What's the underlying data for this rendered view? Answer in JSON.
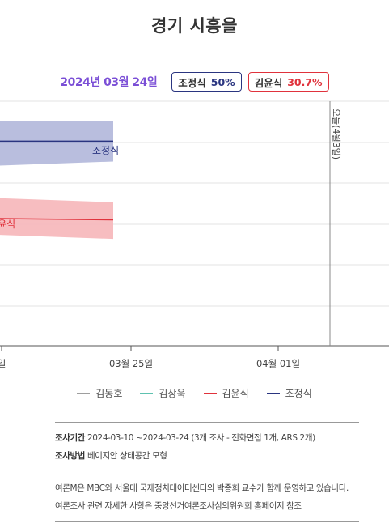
{
  "title": "경기 시흥을",
  "summary": {
    "date": "2024년 03월 24일",
    "candidates": [
      {
        "name": "조정식",
        "pct": "50%",
        "color": "#2a3580"
      },
      {
        "name": "김윤식",
        "pct": "30.7%",
        "color": "#e0323c"
      }
    ]
  },
  "chart_data": {
    "type": "line",
    "x_ticks": [
      "03월 25일",
      "04월 01일"
    ],
    "left_partial_tick": "일",
    "election_marker": "오늘(4월3일)",
    "series": [
      {
        "name": "조정식",
        "color": "#2a3580",
        "band_color": "#b5bbdc",
        "points": [
          {
            "x": "2024-03-10",
            "y": 50,
            "low": 44,
            "high": 55
          },
          {
            "x": "2024-03-24",
            "y": 50,
            "low": 45,
            "high": 55
          }
        ]
      },
      {
        "name": "김윤식",
        "color": "#e0323c",
        "band_color": "#f7b9bd",
        "points": [
          {
            "x": "2024-03-10",
            "y": 31,
            "low": 27,
            "high": 36
          },
          {
            "x": "2024-03-24",
            "y": 30.7,
            "low": 26,
            "high": 35
          }
        ]
      }
    ],
    "gridlines": true
  },
  "legend": [
    {
      "name": "김동호",
      "color": "#9e9e9e"
    },
    {
      "name": "김상욱",
      "color": "#5ec2b0"
    },
    {
      "name": "김윤식",
      "color": "#e0323c"
    },
    {
      "name": "조정식",
      "color": "#2a3580"
    }
  ],
  "notes": {
    "period_label": "조사기간",
    "period_value": "2024-03-10 ~2024-03-24 (3개 조사 - 전화면접 1개, ARS 2개)",
    "method_label": "조사방법",
    "method_value": "베이지안 상태공간 모형",
    "line1": "여론M은 MBC와 서울대 국제정치데이터센터의 박종희 교수가 함께 운영하고 있습니다.",
    "line2": "여론조사 관련 자세한 사항은 중앙선거여론조사심의위원회 홈페이지 참조"
  }
}
